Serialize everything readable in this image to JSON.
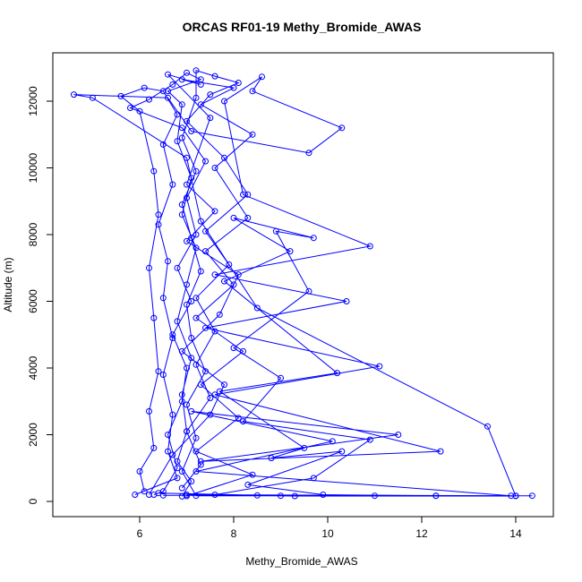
{
  "chart_data": {
    "type": "line",
    "title": "ORCAS RF01-19 Methy_Bromide_AWAS",
    "xlabel": "Methy_Bromide_AWAS",
    "ylabel": "Altitude (m)",
    "xlim": [
      4.5,
      14.5
    ],
    "ylim": [
      -200,
      13200
    ],
    "xticks": [
      6,
      8,
      10,
      12,
      14
    ],
    "yticks": [
      0,
      2000,
      4000,
      6000,
      8000,
      10000,
      12000
    ],
    "grid": false,
    "legend": "none",
    "marker": "open-circle",
    "color": "#0000ff",
    "series": [
      {
        "values": [
          [
            6.9,
            150
          ],
          [
            7.1,
            600
          ],
          [
            6.8,
            1200
          ],
          [
            7.0,
            2100
          ],
          [
            6.9,
            3200
          ],
          [
            7.1,
            4300
          ],
          [
            6.8,
            5400
          ],
          [
            7.0,
            6500
          ],
          [
            7.2,
            7600
          ],
          [
            6.9,
            8600
          ],
          [
            7.1,
            9700
          ],
          [
            6.8,
            10800
          ],
          [
            6.9,
            11900
          ],
          [
            6.6,
            12300
          ],
          [
            7.3,
            12650
          ],
          [
            7.0,
            12850
          ],
          [
            6.7,
            12500
          ],
          [
            6.2,
            12050
          ],
          [
            5.8,
            11800
          ],
          [
            6.9,
            11200
          ],
          [
            7.4,
            10200
          ],
          [
            7.0,
            9100
          ],
          [
            7.2,
            8000
          ],
          [
            6.8,
            7000
          ],
          [
            7.1,
            6000
          ],
          [
            6.7,
            5000
          ],
          [
            7.0,
            4000
          ],
          [
            6.9,
            3000
          ],
          [
            6.6,
            2000
          ],
          [
            6.8,
            1000
          ],
          [
            6.5,
            300
          ],
          [
            6.3,
            200
          ]
        ]
      },
      {
        "values": [
          [
            6.5,
            180
          ],
          [
            8.5,
            180
          ],
          [
            11.0,
            170
          ],
          [
            14.0,
            170
          ],
          [
            14.35,
            170
          ],
          [
            12.3,
            170
          ],
          [
            9.0,
            170
          ],
          [
            7.2,
            170
          ],
          [
            6.9,
            900
          ],
          [
            7.2,
            1900
          ],
          [
            7.0,
            2900
          ],
          [
            7.4,
            3900
          ],
          [
            7.1,
            4900
          ],
          [
            7.0,
            5900
          ],
          [
            7.3,
            6900
          ],
          [
            7.1,
            7900
          ],
          [
            6.9,
            8900
          ],
          [
            7.2,
            9900
          ],
          [
            6.9,
            10900
          ],
          [
            7.2,
            12100
          ],
          [
            7.2,
            12920
          ],
          [
            7.6,
            12750
          ],
          [
            8.1,
            12550
          ],
          [
            7.5,
            12200
          ],
          [
            7.0,
            11400
          ],
          [
            7.8,
            10300
          ],
          [
            8.3,
            9200
          ],
          [
            7.4,
            8100
          ],
          [
            7.9,
            7100
          ],
          [
            7.2,
            6100
          ],
          [
            7.6,
            5100
          ],
          [
            7.2,
            4100
          ],
          [
            7.5,
            3100
          ],
          [
            7.0,
            2100
          ],
          [
            7.3,
            1100
          ],
          [
            6.9,
            400
          ]
        ]
      },
      {
        "values": [
          [
            6.4,
            250
          ],
          [
            9.3,
            160
          ],
          [
            14.0,
            160
          ],
          [
            13.4,
            2250
          ],
          [
            8.5,
            5800
          ],
          [
            7.3,
            8400
          ],
          [
            7.0,
            10300
          ],
          [
            5.0,
            12100
          ],
          [
            4.6,
            12200
          ],
          [
            6.6,
            12100
          ],
          [
            7.1,
            11100
          ],
          [
            9.6,
            10450
          ],
          [
            10.3,
            11200
          ],
          [
            8.4,
            12300
          ],
          [
            8.6,
            12730
          ],
          [
            7.8,
            12000
          ],
          [
            8.2,
            9200
          ],
          [
            10.9,
            7650
          ],
          [
            7.6,
            6800
          ],
          [
            10.4,
            6000
          ],
          [
            7.4,
            5200
          ],
          [
            11.1,
            4050
          ],
          [
            7.6,
            3200
          ],
          [
            12.4,
            1500
          ],
          [
            7.3,
            1200
          ],
          [
            11.5,
            2000
          ],
          [
            7.1,
            2700
          ],
          [
            10.1,
            1800
          ],
          [
            7.2,
            900
          ],
          [
            13.9,
            170
          ],
          [
            7.0,
            200
          ]
        ]
      },
      {
        "values": [
          [
            6.1,
            300
          ],
          [
            6.0,
            900
          ],
          [
            6.3,
            1600
          ],
          [
            6.2,
            2700
          ],
          [
            6.4,
            3900
          ],
          [
            6.3,
            5500
          ],
          [
            6.2,
            7000
          ],
          [
            6.4,
            8600
          ],
          [
            6.3,
            9900
          ],
          [
            6.0,
            11700
          ],
          [
            5.6,
            12150
          ],
          [
            6.1,
            12400
          ],
          [
            6.5,
            12300
          ],
          [
            6.8,
            11600
          ],
          [
            6.5,
            10700
          ],
          [
            6.7,
            9500
          ],
          [
            6.4,
            8300
          ],
          [
            6.6,
            7200
          ],
          [
            6.5,
            6100
          ],
          [
            6.7,
            4900
          ],
          [
            6.5,
            3800
          ],
          [
            6.7,
            2600
          ],
          [
            6.6,
            1500
          ],
          [
            6.8,
            700
          ],
          [
            5.9,
            200
          ]
        ]
      },
      {
        "values": [
          [
            7.6,
            200
          ],
          [
            9.7,
            700
          ],
          [
            10.9,
            1850
          ],
          [
            8.2,
            2400
          ],
          [
            9.0,
            3700
          ],
          [
            8.0,
            4600
          ],
          [
            9.6,
            6300
          ],
          [
            8.9,
            8100
          ],
          [
            9.7,
            7900
          ],
          [
            8.0,
            8500
          ],
          [
            9.2,
            7500
          ],
          [
            7.8,
            6600
          ],
          [
            10.2,
            3850
          ],
          [
            7.7,
            3300
          ],
          [
            9.5,
            1600
          ],
          [
            8.8,
            1300
          ],
          [
            10.3,
            1500
          ],
          [
            8.3,
            500
          ],
          [
            9.9,
            200
          ],
          [
            12.3,
            170
          ]
        ]
      },
      {
        "values": [
          [
            6.2,
            200
          ],
          [
            6.7,
            1400
          ],
          [
            7.5,
            2600
          ],
          [
            7.8,
            3500
          ],
          [
            6.9,
            4500
          ],
          [
            7.7,
            5600
          ],
          [
            8.1,
            6800
          ],
          [
            7.0,
            7800
          ],
          [
            7.6,
            8700
          ],
          [
            7.0,
            9500
          ],
          [
            7.5,
            11500
          ],
          [
            6.6,
            12800
          ],
          [
            7.3,
            12500
          ],
          [
            6.9,
            12650
          ],
          [
            8.0,
            12400
          ],
          [
            7.3,
            11900
          ],
          [
            8.4,
            11000
          ],
          [
            7.6,
            10000
          ],
          [
            8.3,
            8500
          ],
          [
            7.4,
            7500
          ],
          [
            8.0,
            6500
          ],
          [
            7.2,
            5500
          ],
          [
            8.2,
            4500
          ],
          [
            7.3,
            3500
          ],
          [
            8.1,
            2500
          ],
          [
            7.2,
            1500
          ],
          [
            8.4,
            800
          ],
          [
            7.0,
            160
          ]
        ]
      }
    ]
  }
}
